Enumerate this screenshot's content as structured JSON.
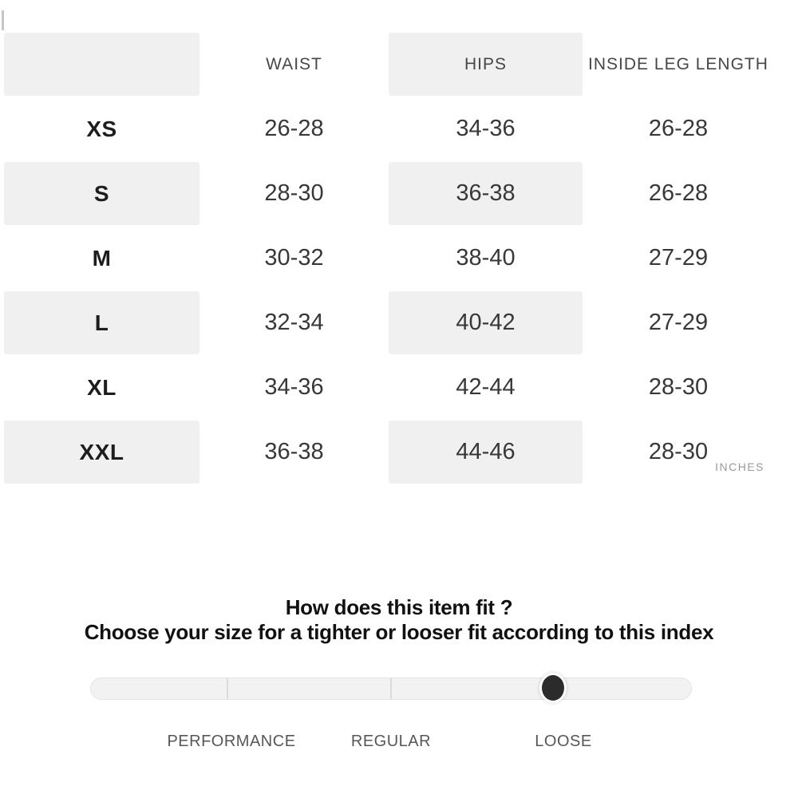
{
  "size_chart": {
    "columns": [
      "",
      "WAIST",
      "HIPS",
      "INSIDE LEG LENGTH"
    ],
    "rows": [
      {
        "size": "XS",
        "waist": "26-28",
        "hips": "34-36",
        "inside_leg_length": "26-28"
      },
      {
        "size": "S",
        "waist": "28-30",
        "hips": "36-38",
        "inside_leg_length": "26-28"
      },
      {
        "size": "M",
        "waist": "30-32",
        "hips": "38-40",
        "inside_leg_length": "27-29"
      },
      {
        "size": "L",
        "waist": "32-34",
        "hips": "40-42",
        "inside_leg_length": "27-29"
      },
      {
        "size": "XL",
        "waist": "34-36",
        "hips": "42-44",
        "inside_leg_length": "28-30"
      },
      {
        "size": "XXL",
        "waist": "36-38",
        "hips": "44-46",
        "inside_leg_length": "28-30"
      }
    ],
    "unit_label": "INCHES"
  },
  "fit_index": {
    "title": "How does this item fit ?",
    "subtitle": "Choose your size for a tighter or looser fit according to this index",
    "options": [
      "PERFORMANCE",
      "REGULAR",
      "LOOSE"
    ],
    "selected_option": "LOOSE"
  },
  "colors": {
    "shaded_cell": "#f0f0f0",
    "slider_track": "#f2f2f2",
    "slider_track_border": "#e4e4e4",
    "slider_tick": "#dbdbdb",
    "slider_knob": "#2b2b2b",
    "size_text": "#1d1d1d",
    "value_text": "#383838",
    "header_text": "#474747",
    "muted_text": "#9a9a9a",
    "fit_label_text": "#575757"
  }
}
